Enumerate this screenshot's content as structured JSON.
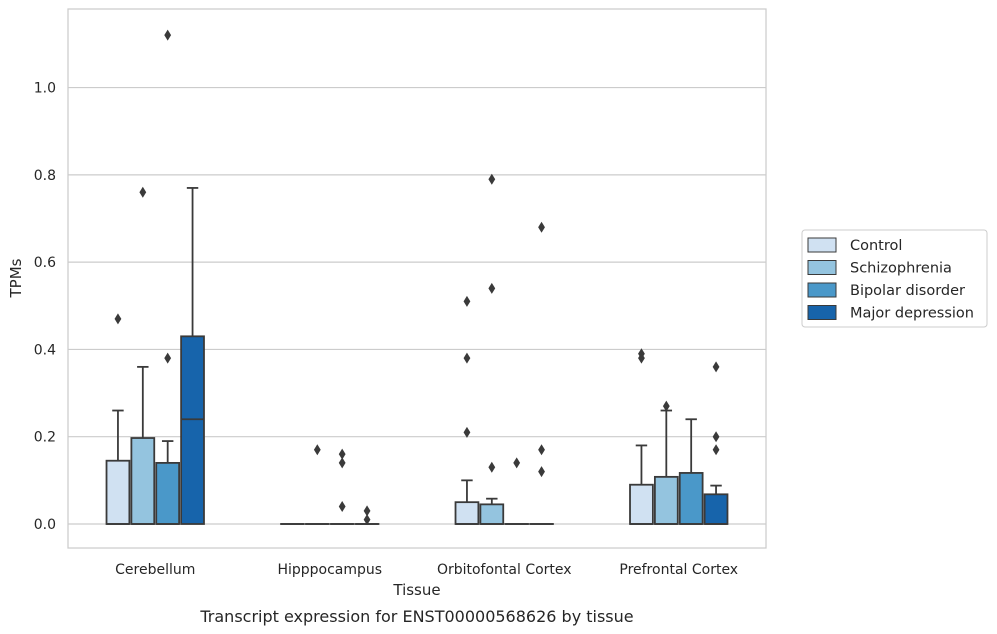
{
  "chart_data": {
    "type": "box",
    "title": "",
    "caption": "Transcript expression for ENST00000568626 by tissue",
    "xlabel": "Tissue",
    "ylabel": "TPMs",
    "ylim": [
      -0.055,
      1.18
    ],
    "yticks": [
      0.0,
      0.2,
      0.4,
      0.6,
      0.8,
      1.0
    ],
    "ytick_labels": [
      "0.0",
      "0.2",
      "0.4",
      "0.6",
      "0.8",
      "1.0"
    ],
    "grid": "horizontal",
    "legend_position": "right",
    "categories": [
      "Cerebellum",
      "Hipppocampus",
      "Orbitofontal Cortex",
      "Prefrontal Cortex"
    ],
    "series": [
      {
        "name": "Control",
        "color": "#d0e1f2",
        "boxes": [
          {
            "q1": 0.0,
            "median": 0.0,
            "q3": 0.145,
            "whisker_low": 0.0,
            "whisker_high": 0.26,
            "outliers": [
              0.47
            ]
          },
          {
            "q1": 0.0,
            "median": 0.0,
            "q3": 0.0,
            "whisker_low": 0.0,
            "whisker_high": 0.0,
            "outliers": []
          },
          {
            "q1": 0.0,
            "median": 0.0,
            "q3": 0.05,
            "whisker_low": 0.0,
            "whisker_high": 0.1,
            "outliers": [
              0.51,
              0.38,
              0.21
            ]
          },
          {
            "q1": 0.0,
            "median": 0.0,
            "q3": 0.09,
            "whisker_low": 0.0,
            "whisker_high": 0.18,
            "outliers": [
              0.39,
              0.38
            ]
          }
        ]
      },
      {
        "name": "Schizophrenia",
        "color": "#94c4df",
        "boxes": [
          {
            "q1": 0.0,
            "median": 0.0,
            "q3": 0.197,
            "whisker_low": 0.0,
            "whisker_high": 0.36,
            "outliers": [
              0.76
            ]
          },
          {
            "q1": 0.0,
            "median": 0.0,
            "q3": 0.0,
            "whisker_low": 0.0,
            "whisker_high": 0.0,
            "outliers": [
              0.17
            ]
          },
          {
            "q1": 0.0,
            "median": 0.0,
            "q3": 0.045,
            "whisker_low": 0.0,
            "whisker_high": 0.058,
            "outliers": [
              0.79,
              0.54,
              0.13
            ]
          },
          {
            "q1": 0.0,
            "median": 0.0,
            "q3": 0.108,
            "whisker_low": 0.0,
            "whisker_high": 0.26,
            "outliers": [
              0.27
            ]
          }
        ]
      },
      {
        "name": "Bipolar disorder",
        "color": "#4a98c9",
        "boxes": [
          {
            "q1": 0.0,
            "median": 0.0,
            "q3": 0.14,
            "whisker_low": 0.0,
            "whisker_high": 0.19,
            "outliers": [
              1.12,
              0.38
            ]
          },
          {
            "q1": 0.0,
            "median": 0.0,
            "q3": 0.0,
            "whisker_low": 0.0,
            "whisker_high": 0.0,
            "outliers": [
              0.16,
              0.14,
              0.04
            ]
          },
          {
            "q1": 0.0,
            "median": 0.0,
            "q3": 0.0,
            "whisker_low": 0.0,
            "whisker_high": 0.0,
            "outliers": [
              0.14
            ]
          },
          {
            "q1": 0.0,
            "median": 0.0,
            "q3": 0.117,
            "whisker_low": 0.0,
            "whisker_high": 0.24,
            "outliers": []
          }
        ]
      },
      {
        "name": "Major depression",
        "color": "#1764ab",
        "boxes": [
          {
            "q1": 0.0,
            "median": 0.24,
            "q3": 0.43,
            "whisker_low": 0.0,
            "whisker_high": 0.77,
            "outliers": []
          },
          {
            "q1": 0.0,
            "median": 0.0,
            "q3": 0.0,
            "whisker_low": 0.0,
            "whisker_high": 0.0,
            "outliers": [
              0.03,
              0.01
            ]
          },
          {
            "q1": 0.0,
            "median": 0.0,
            "q3": 0.0,
            "whisker_low": 0.0,
            "whisker_high": 0.0,
            "outliers": [
              0.68,
              0.17,
              0.12
            ]
          },
          {
            "q1": 0.0,
            "median": 0.0,
            "q3": 0.068,
            "whisker_low": 0.0,
            "whisker_high": 0.088,
            "outliers": [
              0.36,
              0.2,
              0.17
            ]
          }
        ]
      }
    ]
  }
}
